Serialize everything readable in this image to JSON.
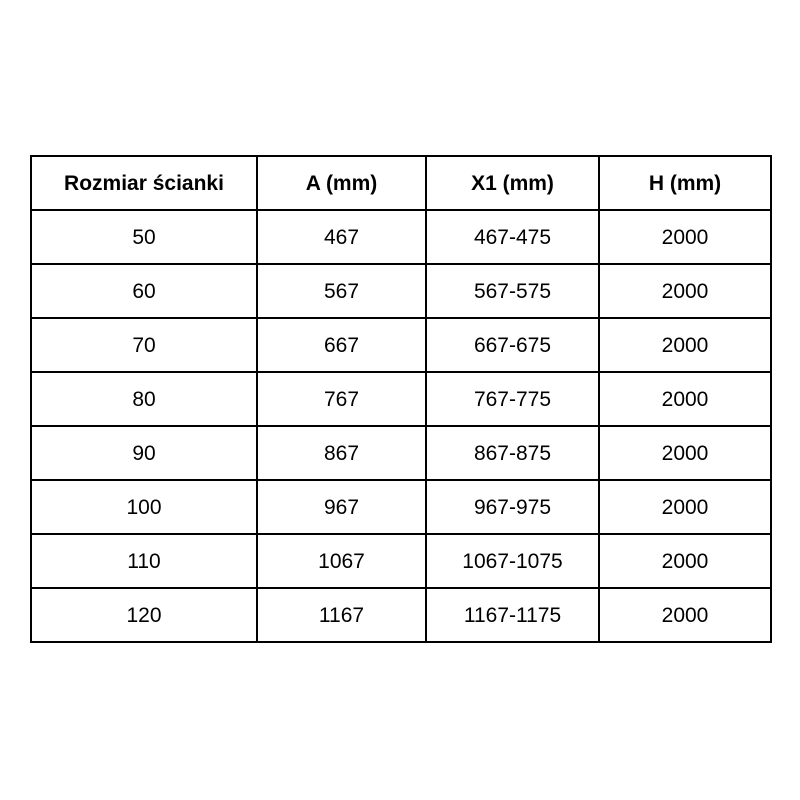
{
  "table": {
    "columns": [
      "Rozmiar ścianki",
      "A (mm)",
      "X1 (mm)",
      "H (mm)"
    ],
    "rows": [
      [
        "50",
        "467",
        "467-475",
        "2000"
      ],
      [
        "60",
        "567",
        "567-575",
        "2000"
      ],
      [
        "70",
        "667",
        "667-675",
        "2000"
      ],
      [
        "80",
        "767",
        "767-775",
        "2000"
      ],
      [
        "90",
        "867",
        "867-875",
        "2000"
      ],
      [
        "100",
        "967",
        "967-975",
        "2000"
      ],
      [
        "110",
        "1067",
        "1067-1075",
        "2000"
      ],
      [
        "120",
        "1167",
        "1167-1175",
        "2000"
      ]
    ]
  },
  "colors": {
    "border": "#000000",
    "text": "#000000",
    "background": "#ffffff"
  }
}
